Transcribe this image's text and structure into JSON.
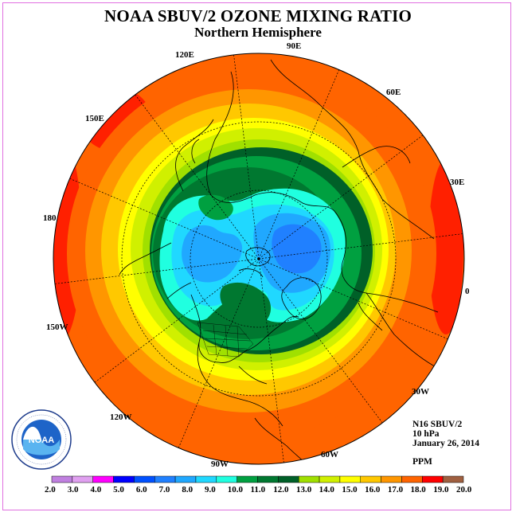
{
  "title": "NOAA SBUV/2 OZONE MIXING RATIO",
  "subtitle": "Northern Hemisphere",
  "longitude_labels": [
    "90E",
    "60E",
    "30E",
    "0",
    "30W",
    "60W",
    "90W",
    "120W",
    "150W",
    "180",
    "150E",
    "120E"
  ],
  "info": {
    "satellite": "N16 SBUV/2",
    "level": "10 hPa",
    "date": "January 26, 2014",
    "units": "PPM"
  },
  "logo": {
    "text": "NOAA",
    "ring_text": "NATIONAL OCEANIC AND ATMOSPHERIC ADMINISTRATION · U.S. DEPARTMENT OF COMMERCE"
  },
  "legend": {
    "ticks": [
      "2.0",
      "3.0",
      "4.0",
      "5.0",
      "6.0",
      "7.0",
      "8.0",
      "9.0",
      "10.0",
      "11.0",
      "12.0",
      "13.0",
      "14.0",
      "15.0",
      "16.0",
      "17.0",
      "18.0",
      "19.0",
      "20.0"
    ],
    "colors": [
      "#c080e0",
      "#e0a0f0",
      "#ff00ff",
      "#0000ff",
      "#0050ff",
      "#2080ff",
      "#20a8ff",
      "#20d8ff",
      "#20ffe0",
      "#00a040",
      "#007830",
      "#006028",
      "#a0e000",
      "#d0f000",
      "#ffff00",
      "#ffc800",
      "#ff9600",
      "#ff6400",
      "#ff0000",
      "#a06040"
    ]
  },
  "ozone_bands": [
    {
      "color": "#ff2000",
      "value": 19.0
    },
    {
      "color": "#ff6400",
      "value": 18.0
    },
    {
      "color": "#ff9600",
      "value": 17.0
    },
    {
      "color": "#ffc800",
      "value": 16.0
    },
    {
      "color": "#ffff00",
      "value": 15.0
    },
    {
      "color": "#d0f000",
      "value": 14.0
    },
    {
      "color": "#a0e000",
      "value": 13.0
    },
    {
      "color": "#007830",
      "value": 12.0
    },
    {
      "color": "#00a040",
      "value": 11.0
    },
    {
      "color": "#20ffe0",
      "value": 10.0
    },
    {
      "color": "#20d8ff",
      "value": 9.0
    },
    {
      "color": "#20a8ff",
      "value": 8.0
    },
    {
      "color": "#2080ff",
      "value": 7.0
    }
  ]
}
